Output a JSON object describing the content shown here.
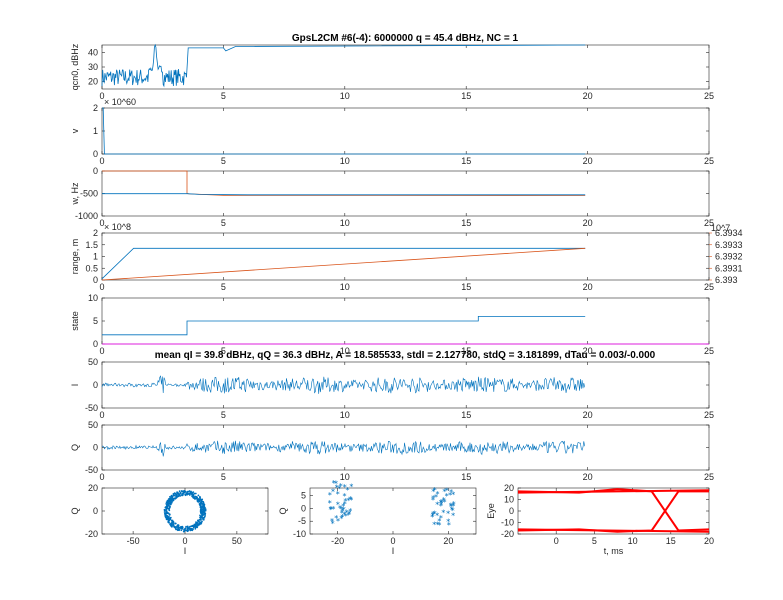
{
  "colors": {
    "blue": "#0072BD",
    "orange": "#D95319",
    "red": "#FF0000",
    "magenta": "#FF00FF",
    "axis": "#262626"
  },
  "titles": {
    "top": "GpsL2CM #6(-4): 6000000 q = 45.4 dBHz,  NC = 1",
    "mid": "mean qI = 39.8 dBHz, qQ = 36.3 dBHz, A = 18.585533, stdI = 2.127780, stdQ = 3.181899, dTau = 0.003/-0.000"
  },
  "chart_data": [
    {
      "type": "line",
      "ylabel": "q_{cn0}, dBHz",
      "xlim": [
        0,
        25
      ],
      "ylim": [
        15,
        45
      ],
      "xticks": [
        "0",
        "5",
        "10",
        "15",
        "20",
        "25"
      ],
      "yticks": [
        "20",
        "30",
        "40"
      ],
      "series": [
        {
          "x": [
            0,
            1.9,
            2.2,
            2.5,
            3.5,
            3.55,
            5,
            5.1,
            5.5,
            19.9
          ],
          "values": [
            22,
            28,
            45,
            28,
            24,
            43,
            43,
            41,
            44,
            45
          ]
        }
      ]
    },
    {
      "type": "line",
      "ylabel": "v",
      "exponent": "× 10^60",
      "xlim": [
        0,
        25
      ],
      "ylim": [
        0,
        2
      ],
      "xticks": [
        "0",
        "5",
        "10",
        "15",
        "20",
        "25"
      ],
      "yticks": [
        "0",
        "1",
        "2"
      ],
      "series": [
        {
          "x": [
            0,
            0.05,
            0.1,
            19.9
          ],
          "values": [
            2,
            2,
            0,
            0
          ]
        }
      ]
    },
    {
      "type": "line",
      "ylabel": "w, Hz",
      "xlim": [
        0,
        25
      ],
      "ylim": [
        -1000,
        0
      ],
      "xticks": [
        "0",
        "5",
        "10",
        "15",
        "20",
        "25"
      ],
      "yticks": [
        "-1000",
        "-500",
        "0"
      ],
      "series": [
        {
          "x": [
            0,
            3.5,
            3.5,
            3.6,
            5,
            19.9
          ],
          "values": [
            0,
            0,
            -500,
            -510,
            -540,
            -545
          ]
        },
        {
          "x": [
            0,
            3.5,
            4,
            6,
            19.9
          ],
          "values": [
            -505,
            -505,
            -520,
            -530,
            -530
          ]
        }
      ]
    },
    {
      "type": "line",
      "ylabel": "range, m",
      "exponent": "× 10^8",
      "exponent_right": "10^7",
      "xlim": [
        0,
        25
      ],
      "ylim": [
        0,
        2
      ],
      "ylim_right": [
        6.393,
        6.3934
      ],
      "xticks": [
        "0",
        "5",
        "10",
        "15",
        "20",
        "25"
      ],
      "yticks": [
        "0",
        "0.5",
        "1",
        "1.5",
        "2"
      ],
      "yticks_right": [
        "6.393",
        "6.3931",
        "6.3932",
        "6.3933",
        "6.3934"
      ],
      "series": [
        {
          "x": [
            0,
            1.3,
            19.9
          ],
          "values": [
            0.05,
            1.35,
            1.35
          ]
        },
        {
          "x": [
            0,
            19.9
          ],
          "values_right": [
            6.393,
            6.39327
          ]
        }
      ]
    },
    {
      "type": "line",
      "ylabel": "state",
      "xlim": [
        0,
        25
      ],
      "ylim": [
        0,
        10
      ],
      "xticks": [
        "0",
        "5",
        "10",
        "15",
        "20",
        "25"
      ],
      "yticks": [
        "0",
        "5",
        "10"
      ],
      "series": [
        {
          "x": [
            0,
            3.5,
            3.5,
            15.5,
            15.5,
            19.9
          ],
          "values": [
            2,
            2,
            5,
            5,
            6,
            6
          ]
        },
        {
          "x": [
            0,
            25
          ],
          "values": [
            0,
            0
          ]
        }
      ]
    },
    {
      "type": "line",
      "ylabel": "I",
      "xlim": [
        0,
        25
      ],
      "ylim": [
        -50,
        50
      ],
      "xticks": [
        "0",
        "5",
        "10",
        "15",
        "20",
        "25"
      ],
      "yticks": [
        "-50",
        "0",
        "50"
      ],
      "series": [
        {
          "x_range": [
            0,
            19.9
          ],
          "amplitude": 18,
          "noise": 4
        }
      ]
    },
    {
      "type": "line",
      "ylabel": "Q",
      "xlim": [
        0,
        25
      ],
      "ylim": [
        -50,
        50
      ],
      "xticks": [
        "0",
        "5",
        "10",
        "15",
        "20",
        "25"
      ],
      "yticks": [
        "-50",
        "0",
        "50"
      ],
      "series": [
        {
          "x_range": [
            0,
            19.9
          ],
          "amplitude": 15,
          "noise": 3
        }
      ]
    },
    {
      "type": "scatter",
      "xlabel": "I",
      "ylabel": "Q",
      "xlim": [
        -80,
        80
      ],
      "ylim": [
        -20,
        20
      ],
      "xticks": [
        "-50",
        "0",
        "50"
      ],
      "yticks": [
        "-20",
        "0",
        "20"
      ],
      "series": [
        {
          "center": [
            0,
            0
          ],
          "radius": [
            15,
            20
          ]
        }
      ]
    },
    {
      "type": "scatter",
      "xlabel": "I",
      "ylabel": "Q",
      "xlim": [
        -30,
        30
      ],
      "ylim": [
        -10,
        8
      ],
      "xticks": [
        "-20",
        "0",
        "20"
      ],
      "yticks": [
        "-10",
        "-5",
        "0",
        "5"
      ],
      "series": [
        {
          "clusters": [
            [
              -19,
              2
            ],
            [
              18,
              0
            ]
          ]
        }
      ]
    },
    {
      "type": "line",
      "xlabel": "t, ms",
      "ylabel": "Eye",
      "xlim": [
        -5,
        20
      ],
      "ylim": [
        -20,
        20
      ],
      "xticks": [
        "0",
        "5",
        "10",
        "15",
        "20"
      ],
      "yticks": [
        "-20",
        "-10",
        "0",
        "10",
        "20"
      ],
      "series": [
        {
          "levels": [
            17,
            -17
          ],
          "cross": [
            12.5,
            16
          ]
        }
      ]
    }
  ]
}
